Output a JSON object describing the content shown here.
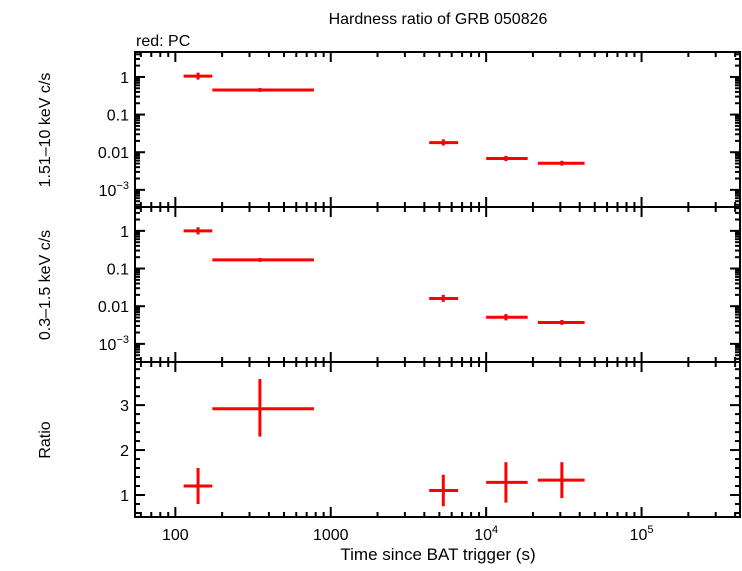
{
  "chart_data": {
    "type": "scatter",
    "title": "Hardness ratio of GRB 050826",
    "subtitle": "red: PC",
    "xlabel": "Time since BAT trigger (s)",
    "xscale": "log",
    "xlim": [
      55,
      430000
    ],
    "xticks": [
      {
        "v": 100,
        "label": "100"
      },
      {
        "v": 1000,
        "label": "1000"
      },
      {
        "v": 10000,
        "label": "10",
        "exp": "4"
      },
      {
        "v": 100000,
        "label": "10",
        "exp": "5"
      }
    ],
    "color": "#ff0000",
    "panels": [
      {
        "ylabel": "1.51–10 keV c/s",
        "yscale": "log",
        "ylim": [
          0.00035,
          4.6
        ],
        "yticks": [
          {
            "v": 1,
            "label": "1"
          },
          {
            "v": 0.1,
            "label": "0.1"
          },
          {
            "v": 0.01,
            "label": "0.01"
          },
          {
            "v": 0.001,
            "label": "10",
            "exp": "−3"
          }
        ],
        "points": [
          {
            "x": 140,
            "xlo": 113,
            "xhi": 173,
            "y": 1.05,
            "ylo": 0.85,
            "yhi": 1.3
          },
          {
            "x": 350,
            "xlo": 173,
            "xhi": 780,
            "y": 0.45,
            "ylo": 0.4,
            "yhi": 0.51
          },
          {
            "x": 5300,
            "xlo": 4300,
            "xhi": 6600,
            "y": 0.018,
            "ylo": 0.015,
            "yhi": 0.022
          },
          {
            "x": 13400,
            "xlo": 10000,
            "xhi": 18500,
            "y": 0.0068,
            "ylo": 0.0058,
            "yhi": 0.008
          },
          {
            "x": 30700,
            "xlo": 21500,
            "xhi": 43000,
            "y": 0.0051,
            "ylo": 0.0044,
            "yhi": 0.0059
          }
        ]
      },
      {
        "ylabel": "0.3–1.5 keV c/s",
        "yscale": "log",
        "ylim": [
          0.00033,
          4.3
        ],
        "yticks": [
          {
            "v": 1,
            "label": "1"
          },
          {
            "v": 0.1,
            "label": "0.1"
          },
          {
            "v": 0.01,
            "label": "0.01"
          },
          {
            "v": 0.001,
            "label": "10",
            "exp": "−3"
          }
        ],
        "points": [
          {
            "x": 140,
            "xlo": 113,
            "xhi": 173,
            "y": 1.0,
            "ylo": 0.8,
            "yhi": 1.25
          },
          {
            "x": 350,
            "xlo": 173,
            "xhi": 780,
            "y": 0.17,
            "ylo": 0.15,
            "yhi": 0.19
          },
          {
            "x": 5300,
            "xlo": 4300,
            "xhi": 6600,
            "y": 0.016,
            "ylo": 0.013,
            "yhi": 0.02
          },
          {
            "x": 13400,
            "xlo": 10000,
            "xhi": 18500,
            "y": 0.0051,
            "ylo": 0.0042,
            "yhi": 0.0062
          },
          {
            "x": 30700,
            "xlo": 21500,
            "xhi": 43000,
            "y": 0.0037,
            "ylo": 0.0032,
            "yhi": 0.0043
          }
        ]
      },
      {
        "ylabel": "Ratio",
        "yscale": "linear",
        "ylim": [
          0.51,
          3.96
        ],
        "yticks": [
          {
            "v": 1,
            "label": "1"
          },
          {
            "v": 2,
            "label": "2"
          },
          {
            "v": 3,
            "label": "3"
          }
        ],
        "points": [
          {
            "x": 140,
            "xlo": 113,
            "xhi": 173,
            "y": 1.2,
            "ylo": 0.8,
            "yhi": 1.6
          },
          {
            "x": 350,
            "xlo": 173,
            "xhi": 780,
            "y": 2.92,
            "ylo": 2.3,
            "yhi": 3.58
          },
          {
            "x": 5300,
            "xlo": 4300,
            "xhi": 6600,
            "y": 1.1,
            "ylo": 0.75,
            "yhi": 1.45
          },
          {
            "x": 13400,
            "xlo": 10000,
            "xhi": 18500,
            "y": 1.28,
            "ylo": 0.83,
            "yhi": 1.73
          },
          {
            "x": 30700,
            "xlo": 21500,
            "xhi": 43000,
            "y": 1.33,
            "ylo": 0.93,
            "yhi": 1.73
          }
        ]
      }
    ]
  }
}
